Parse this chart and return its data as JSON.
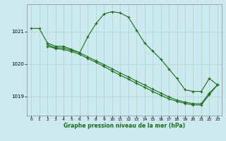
{
  "bg_color": "#cde9f0",
  "grid_color": "#a8d8c8",
  "line_color": "#1a6b1a",
  "xlabel": "Graphe pression niveau de la mer (hPa)",
  "ylim": [
    1018.4,
    1021.85
  ],
  "xlim": [
    -0.5,
    23.5
  ],
  "yticks": [
    1019,
    1020,
    1021
  ],
  "xticks": [
    0,
    1,
    2,
    3,
    4,
    5,
    6,
    7,
    8,
    9,
    10,
    11,
    12,
    13,
    14,
    15,
    16,
    17,
    18,
    19,
    20,
    21,
    22,
    23
  ],
  "line1_x": [
    0,
    1,
    2,
    3,
    4,
    5,
    6,
    7,
    8,
    9,
    10,
    11,
    12,
    13,
    14,
    15,
    16,
    17,
    18,
    19,
    20,
    21,
    22,
    23
  ],
  "line1_y": [
    1021.1,
    1021.1,
    1020.65,
    1020.55,
    1020.55,
    1020.45,
    1020.35,
    1020.85,
    1021.25,
    1021.55,
    1021.62,
    1021.58,
    1021.45,
    1021.05,
    1020.65,
    1020.4,
    1020.15,
    1019.85,
    1019.55,
    1019.2,
    1019.15,
    1019.15,
    1019.55,
    1019.35
  ],
  "line2_x": [
    2,
    3,
    4,
    5,
    6,
    7,
    8,
    9,
    10,
    11,
    12,
    13,
    14,
    15,
    16,
    17,
    18,
    19,
    20,
    21,
    22,
    23
  ],
  "line2_y": [
    1020.6,
    1020.5,
    1020.5,
    1020.42,
    1020.35,
    1020.22,
    1020.1,
    1019.98,
    1019.85,
    1019.72,
    1019.6,
    1019.47,
    1019.35,
    1019.22,
    1019.1,
    1018.98,
    1018.88,
    1018.82,
    1018.77,
    1018.77,
    1019.1,
    1019.35
  ],
  "line3_x": [
    2,
    3,
    4,
    5,
    6,
    7,
    8,
    9,
    10,
    11,
    12,
    13,
    14,
    15,
    16,
    17,
    18,
    19,
    20,
    21,
    22,
    23
  ],
  "line3_y": [
    1020.55,
    1020.48,
    1020.45,
    1020.38,
    1020.3,
    1020.17,
    1020.05,
    1019.92,
    1019.78,
    1019.65,
    1019.53,
    1019.4,
    1019.28,
    1019.15,
    1019.03,
    1018.92,
    1018.84,
    1018.78,
    1018.73,
    1018.73,
    1019.05,
    1019.35
  ]
}
